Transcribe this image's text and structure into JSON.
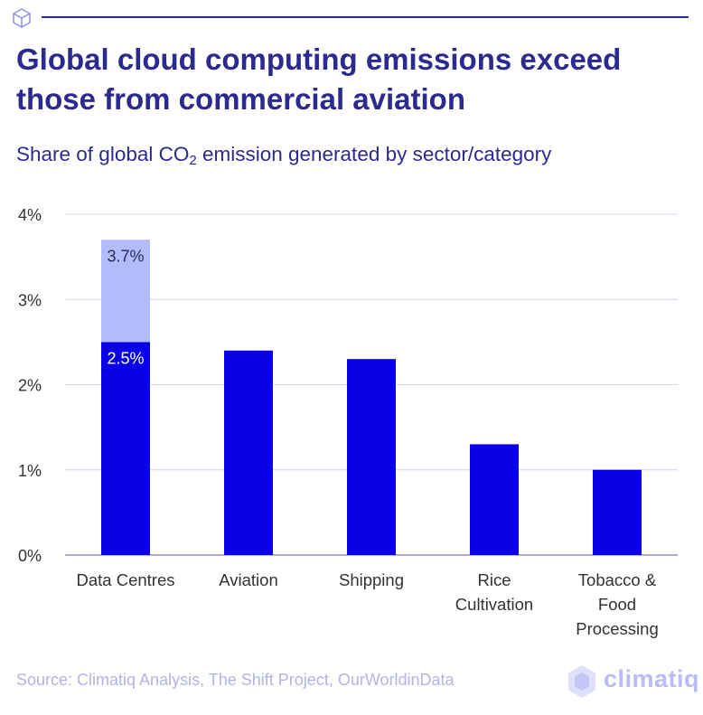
{
  "header": {
    "title": "Global cloud computing emissions exceed those from commercial aviation",
    "subtitle_pre": "Share of global CO",
    "subtitle_sub": "2",
    "subtitle_post": " emission generated by sector/category"
  },
  "chart_data": {
    "type": "bar",
    "stacked": true,
    "categories": [
      [
        "Data Centres"
      ],
      [
        "Aviation"
      ],
      [
        "Shipping"
      ],
      [
        "Rice",
        "Cultivation"
      ],
      [
        "Tobacco &",
        "Food",
        "Processing"
      ]
    ],
    "series": [
      {
        "values": [
          2.5,
          2.4,
          2.3,
          1.3,
          1.0
        ],
        "color": "#0a00e6"
      },
      {
        "values": [
          1.2,
          0,
          0,
          0,
          0
        ],
        "color": "#b3bcfb"
      }
    ],
    "data_labels": [
      {
        "category_index": 0,
        "value": 3.7,
        "text": "3.7%",
        "color": "#2a2a5a"
      },
      {
        "category_index": 0,
        "value": 2.5,
        "text": "2.5%",
        "color": "#ffffff"
      }
    ],
    "yticks": [
      {
        "value": 0,
        "label": "0%"
      },
      {
        "value": 1,
        "label": "1%"
      },
      {
        "value": 2,
        "label": "2%"
      },
      {
        "value": 3,
        "label": "3%"
      },
      {
        "value": 4,
        "label": "4%"
      }
    ],
    "ylim": [
      0,
      4
    ],
    "grid": true,
    "gridline_color": "#d4d6f2",
    "axis_color": "#7a7ac8",
    "tick_label_color": "#333333",
    "legend": "none"
  },
  "footer": {
    "source": "Source: Climatiq Analysis, The Shift Project, OurWorldinData",
    "brand": "climatiq"
  },
  "icons": {
    "top_left": "cube-icon",
    "brand_logo": "hexagon-logo-icon"
  }
}
